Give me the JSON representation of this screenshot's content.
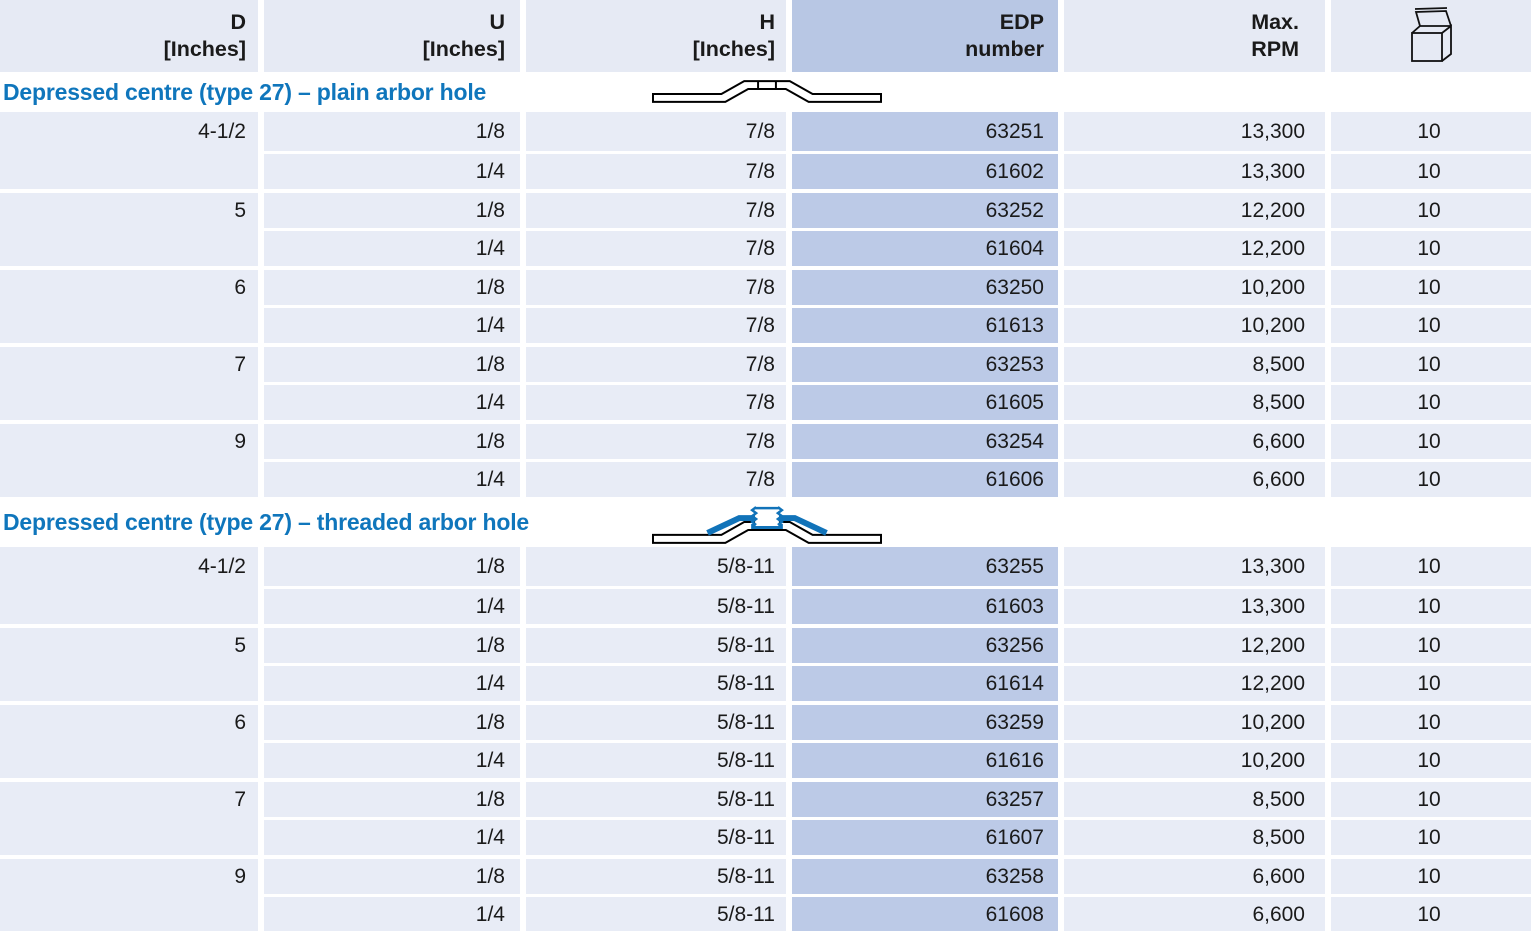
{
  "header": {
    "columns": [
      {
        "id": "d",
        "line1": "D",
        "line2": "[Inches]"
      },
      {
        "id": "u",
        "line1": "U",
        "line2": "[Inches]"
      },
      {
        "id": "h",
        "line1": "H",
        "line2": "[Inches]"
      },
      {
        "id": "edp",
        "line1": "EDP",
        "line2": "number"
      },
      {
        "id": "rpm",
        "line1": "Max.",
        "line2": "RPM"
      },
      {
        "id": "qty",
        "icon": "open-box-icon"
      }
    ]
  },
  "sections": [
    {
      "title": "Depressed centre (type 27) – plain arbor hole",
      "icon": "type27-plain-disc-icon",
      "rows": [
        {
          "d": "4-1/2",
          "u": "1/8",
          "h": "7/8",
          "edp": "63251",
          "rpm": "13,300",
          "qty": "10",
          "group_start": true
        },
        {
          "d": "",
          "u": "1/4",
          "h": "7/8",
          "edp": "61602",
          "rpm": "13,300",
          "qty": "10",
          "group_start": false
        },
        {
          "d": "5",
          "u": "1/8",
          "h": "7/8",
          "edp": "63252",
          "rpm": "12,200",
          "qty": "10",
          "group_start": true
        },
        {
          "d": "",
          "u": "1/4",
          "h": "7/8",
          "edp": "61604",
          "rpm": "12,200",
          "qty": "10",
          "group_start": false
        },
        {
          "d": "6",
          "u": "1/8",
          "h": "7/8",
          "edp": "63250",
          "rpm": "10,200",
          "qty": "10",
          "group_start": true
        },
        {
          "d": "",
          "u": "1/4",
          "h": "7/8",
          "edp": "61613",
          "rpm": "10,200",
          "qty": "10",
          "group_start": false
        },
        {
          "d": "7",
          "u": "1/8",
          "h": "7/8",
          "edp": "63253",
          "rpm": "8,500",
          "qty": "10",
          "group_start": true
        },
        {
          "d": "",
          "u": "1/4",
          "h": "7/8",
          "edp": "61605",
          "rpm": "8,500",
          "qty": "10",
          "group_start": false
        },
        {
          "d": "9",
          "u": "1/8",
          "h": "7/8",
          "edp": "63254",
          "rpm": "6,600",
          "qty": "10",
          "group_start": true
        },
        {
          "d": "",
          "u": "1/4",
          "h": "7/8",
          "edp": "61606",
          "rpm": "6,600",
          "qty": "10",
          "group_start": false
        }
      ]
    },
    {
      "title": "Depressed centre (type 27) – threaded arbor hole",
      "icon": "type27-threaded-disc-icon",
      "rows": [
        {
          "d": "4-1/2",
          "u": "1/8",
          "h": "5/8-11",
          "edp": "63255",
          "rpm": "13,300",
          "qty": "10",
          "group_start": true
        },
        {
          "d": "",
          "u": "1/4",
          "h": "5/8-11",
          "edp": "61603",
          "rpm": "13,300",
          "qty": "10",
          "group_start": false
        },
        {
          "d": "5",
          "u": "1/8",
          "h": "5/8-11",
          "edp": "63256",
          "rpm": "12,200",
          "qty": "10",
          "group_start": true
        },
        {
          "d": "",
          "u": "1/4",
          "h": "5/8-11",
          "edp": "61614",
          "rpm": "12,200",
          "qty": "10",
          "group_start": false
        },
        {
          "d": "6",
          "u": "1/8",
          "h": "5/8-11",
          "edp": "63259",
          "rpm": "10,200",
          "qty": "10",
          "group_start": true
        },
        {
          "d": "",
          "u": "1/4",
          "h": "5/8-11",
          "edp": "61616",
          "rpm": "10,200",
          "qty": "10",
          "group_start": false
        },
        {
          "d": "7",
          "u": "1/8",
          "h": "5/8-11",
          "edp": "63257",
          "rpm": "8,500",
          "qty": "10",
          "group_start": true
        },
        {
          "d": "",
          "u": "1/4",
          "h": "5/8-11",
          "edp": "61607",
          "rpm": "8,500",
          "qty": "10",
          "group_start": false
        },
        {
          "d": "9",
          "u": "1/8",
          "h": "5/8-11",
          "edp": "63258",
          "rpm": "6,600",
          "qty": "10",
          "group_start": true
        },
        {
          "d": "",
          "u": "1/4",
          "h": "5/8-11",
          "edp": "61608",
          "rpm": "6,600",
          "qty": "10",
          "group_start": false
        }
      ]
    }
  ],
  "colors": {
    "row_bg": "#e8ecf6",
    "edp_col_bg": "#bccae7",
    "header_bg": "#e6eaf4",
    "header_edp_bg": "#b8c7e4",
    "title_blue": "#0f76bc",
    "icon_blue": "#1173b9",
    "text": "#1a1a1a",
    "separator": "#ffffff"
  }
}
